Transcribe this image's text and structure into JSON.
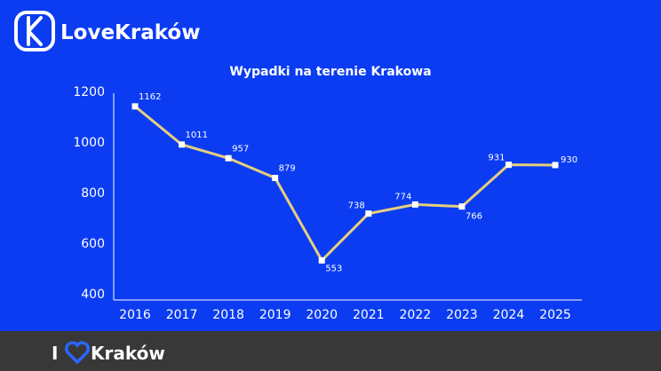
{
  "logo": "LoveKraków",
  "footer": {
    "prefix": "I",
    "brand": "Kraków"
  },
  "chart_data": {
    "type": "line",
    "title": "Wypadki na terenie Krakowa",
    "categories": [
      "2016",
      "2017",
      "2018",
      "2019",
      "2020",
      "2021",
      "2022",
      "2023",
      "2024",
      "2025"
    ],
    "series": [
      {
        "name": "Wypadki",
        "color": "#e6cf7c",
        "values": [
          1162,
          1011,
          957,
          879,
          553,
          738,
          774,
          766,
          931,
          930
        ]
      }
    ],
    "ylim": [
      400,
      1200
    ],
    "yticks": [
      400,
      600,
      800,
      1000,
      1200
    ],
    "grid": false
  }
}
